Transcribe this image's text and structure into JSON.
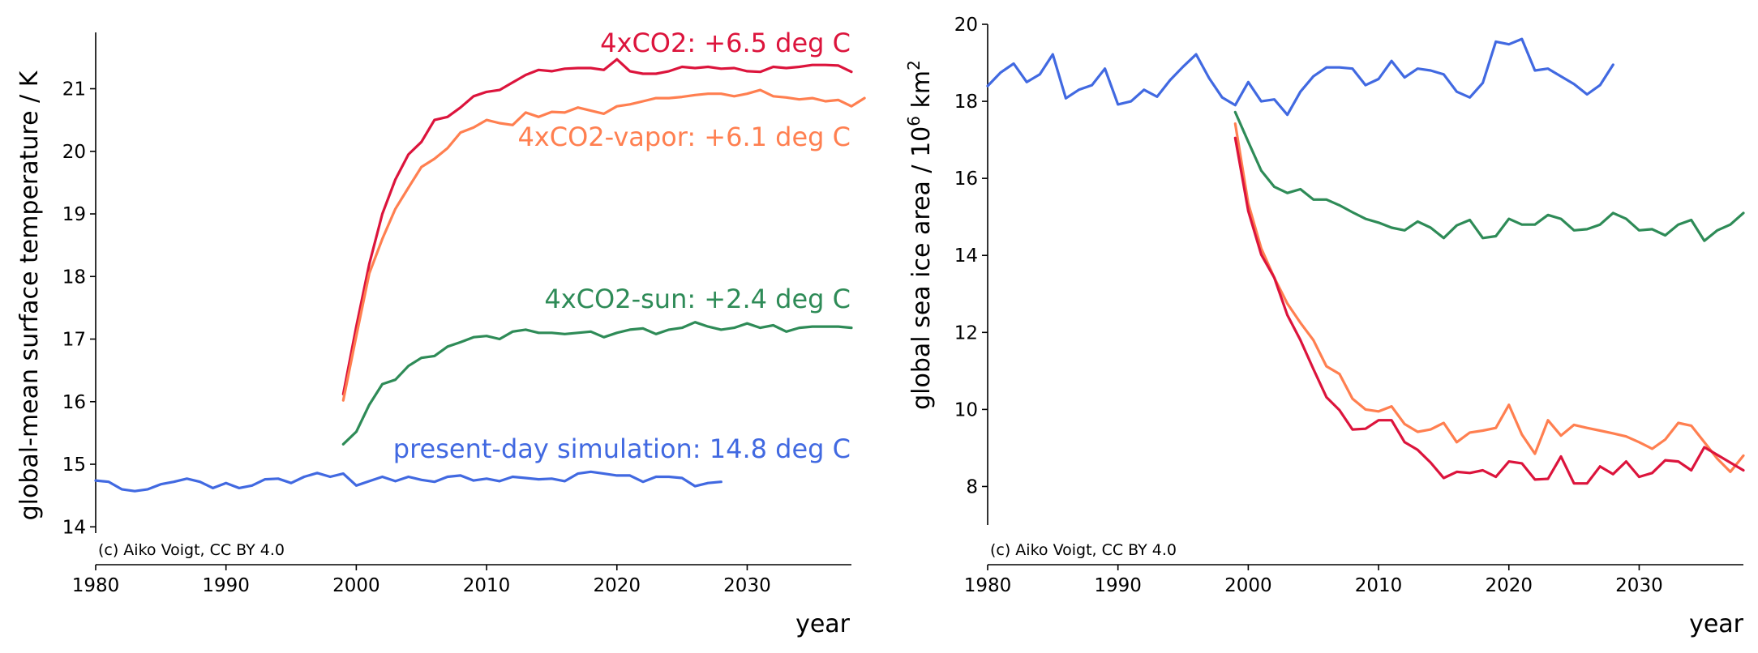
{
  "colors": {
    "co2": "#dc143c",
    "vapor": "#ff7f50",
    "sun": "#2e8b57",
    "present": "#4169e1"
  },
  "chart_data": [
    {
      "type": "line",
      "ylabel": "global-mean surface temperature / K",
      "xlabel": "year",
      "credit": "(c) Aiko Voigt, CC BY 4.0",
      "xlim": [
        1980,
        2038
      ],
      "ylim": [
        13.9,
        21.9
      ],
      "xticks": [
        1980,
        1990,
        2000,
        2010,
        2020,
        2030
      ],
      "yticks": [
        14,
        15,
        16,
        17,
        18,
        19,
        20,
        21
      ],
      "annotations": [
        {
          "id": "co2",
          "text": "4xCO2: +6.5 deg C"
        },
        {
          "id": "vapor",
          "text": "4xCO2-vapor: +6.1 deg C"
        },
        {
          "id": "sun",
          "text": "4xCO2-sun: +2.4 deg C"
        },
        {
          "id": "present",
          "text": "present-day simulation: 14.8 deg C"
        }
      ],
      "series": [
        {
          "id": "present",
          "name": "present-day",
          "x0": 1980,
          "values": [
            14.74,
            14.72,
            14.6,
            14.57,
            14.6,
            14.68,
            14.72,
            14.77,
            14.72,
            14.62,
            14.7,
            14.62,
            14.66,
            14.76,
            14.77,
            14.7,
            14.8,
            14.86,
            14.8,
            14.85,
            14.66,
            14.73,
            14.8,
            14.73,
            14.8,
            14.75,
            14.72,
            14.8,
            14.82,
            14.74,
            14.77,
            14.73,
            14.8,
            14.78,
            14.76,
            14.77,
            14.73,
            14.85,
            14.88,
            14.85,
            14.82,
            14.82,
            14.72,
            14.8,
            14.8,
            14.78,
            14.65,
            14.7,
            14.72
          ]
        },
        {
          "id": "co2",
          "name": "4xCO2",
          "x0": 1999,
          "values": [
            16.12,
            17.2,
            18.2,
            19.0,
            19.55,
            19.95,
            20.15,
            20.5,
            20.55,
            20.7,
            20.88,
            20.95,
            20.98,
            21.1,
            21.22,
            21.3,
            21.28,
            21.32,
            21.33,
            21.33,
            21.3,
            21.47,
            21.28,
            21.24,
            21.24,
            21.28,
            21.35,
            21.33,
            21.35,
            21.32,
            21.33,
            21.28,
            21.27,
            21.35,
            21.33,
            21.35,
            21.38,
            21.38,
            21.37,
            21.27
          ]
        },
        {
          "id": "vapor",
          "name": "4xCO2-vapor",
          "x0": 1999,
          "values": [
            16.02,
            17.05,
            18.05,
            18.6,
            19.08,
            19.42,
            19.75,
            19.88,
            20.05,
            20.3,
            20.38,
            20.5,
            20.45,
            20.42,
            20.62,
            20.55,
            20.63,
            20.62,
            20.7,
            20.65,
            20.6,
            20.72,
            20.75,
            20.8,
            20.85,
            20.85,
            20.87,
            20.9,
            20.92,
            20.92,
            20.88,
            20.92,
            20.98,
            20.88,
            20.86,
            20.83,
            20.85,
            20.8,
            20.82,
            20.72,
            20.85
          ]
        },
        {
          "id": "sun",
          "name": "4xCO2-sun",
          "x0": 1999,
          "values": [
            15.32,
            15.52,
            15.95,
            16.28,
            16.35,
            16.57,
            16.7,
            16.73,
            16.88,
            16.95,
            17.03,
            17.05,
            17.0,
            17.12,
            17.15,
            17.1,
            17.1,
            17.08,
            17.1,
            17.12,
            17.03,
            17.1,
            17.15,
            17.17,
            17.08,
            17.15,
            17.18,
            17.27,
            17.2,
            17.15,
            17.18,
            17.25,
            17.18,
            17.22,
            17.12,
            17.18,
            17.2,
            17.2,
            17.2,
            17.18
          ]
        }
      ]
    },
    {
      "type": "line",
      "ylabel": "global sea ice area  / 10",
      "ylabel_sup1": "6",
      "ylabel_mid": " km",
      "ylabel_sup2": "2",
      "xlabel": "year",
      "credit": "(c) Aiko Voigt, CC BY 4.0",
      "xlim": [
        1980,
        2038
      ],
      "ylim": [
        7,
        20
      ],
      "xticks": [
        1980,
        1990,
        2000,
        2010,
        2020,
        2030
      ],
      "yticks": [
        8,
        10,
        12,
        14,
        16,
        18,
        20
      ],
      "series": [
        {
          "id": "present",
          "name": "present-day",
          "x0": 1980,
          "values": [
            18.4,
            18.75,
            18.98,
            18.5,
            18.7,
            19.22,
            18.08,
            18.3,
            18.42,
            18.85,
            17.92,
            18.0,
            18.3,
            18.12,
            18.55,
            18.9,
            19.22,
            18.6,
            18.1,
            17.9,
            18.5,
            18.0,
            18.05,
            17.65,
            18.25,
            18.65,
            18.88,
            18.88,
            18.85,
            18.42,
            18.58,
            19.05,
            18.62,
            18.85,
            18.8,
            18.7,
            18.25,
            18.1,
            18.48,
            19.55,
            19.48,
            19.62,
            18.8,
            18.85,
            18.65,
            18.45,
            18.18,
            18.42,
            18.95
          ]
        },
        {
          "id": "sun",
          "name": "4xCO2-sun",
          "x0": 1999,
          "values": [
            17.72,
            16.95,
            16.2,
            15.78,
            15.62,
            15.72,
            15.45,
            15.45,
            15.3,
            15.12,
            14.95,
            14.85,
            14.72,
            14.65,
            14.88,
            14.72,
            14.45,
            14.78,
            14.92,
            14.45,
            14.5,
            14.95,
            14.8,
            14.8,
            15.05,
            14.95,
            14.65,
            14.68,
            14.8,
            15.1,
            14.95,
            14.65,
            14.68,
            14.52,
            14.8,
            14.92,
            14.38,
            14.65,
            14.8,
            15.1
          ]
        },
        {
          "id": "vapor",
          "name": "4xCO2-vapor",
          "x0": 1999,
          "values": [
            17.42,
            15.35,
            14.18,
            13.42,
            12.75,
            12.25,
            11.8,
            11.12,
            10.92,
            10.28,
            10.0,
            9.95,
            10.08,
            9.62,
            9.42,
            9.48,
            9.65,
            9.15,
            9.4,
            9.45,
            9.52,
            10.12,
            9.35,
            8.85,
            9.72,
            9.32,
            9.6,
            9.52,
            9.45,
            9.38,
            9.3,
            9.15,
            8.98,
            9.22,
            9.65,
            9.58,
            9.15,
            8.72,
            8.38,
            8.8
          ]
        },
        {
          "id": "co2",
          "name": "4xCO2",
          "x0": 1999,
          "values": [
            17.05,
            15.15,
            14.02,
            13.42,
            12.45,
            11.8,
            11.05,
            10.32,
            9.98,
            9.48,
            9.5,
            9.72,
            9.72,
            9.15,
            8.95,
            8.62,
            8.22,
            8.38,
            8.35,
            8.42,
            8.25,
            8.65,
            8.6,
            8.18,
            8.2,
            8.78,
            8.08,
            8.08,
            8.52,
            8.32,
            8.65,
            8.25,
            8.35,
            8.68,
            8.65,
            8.42,
            9.02,
            8.82,
            8.62,
            8.42
          ]
        }
      ]
    }
  ]
}
